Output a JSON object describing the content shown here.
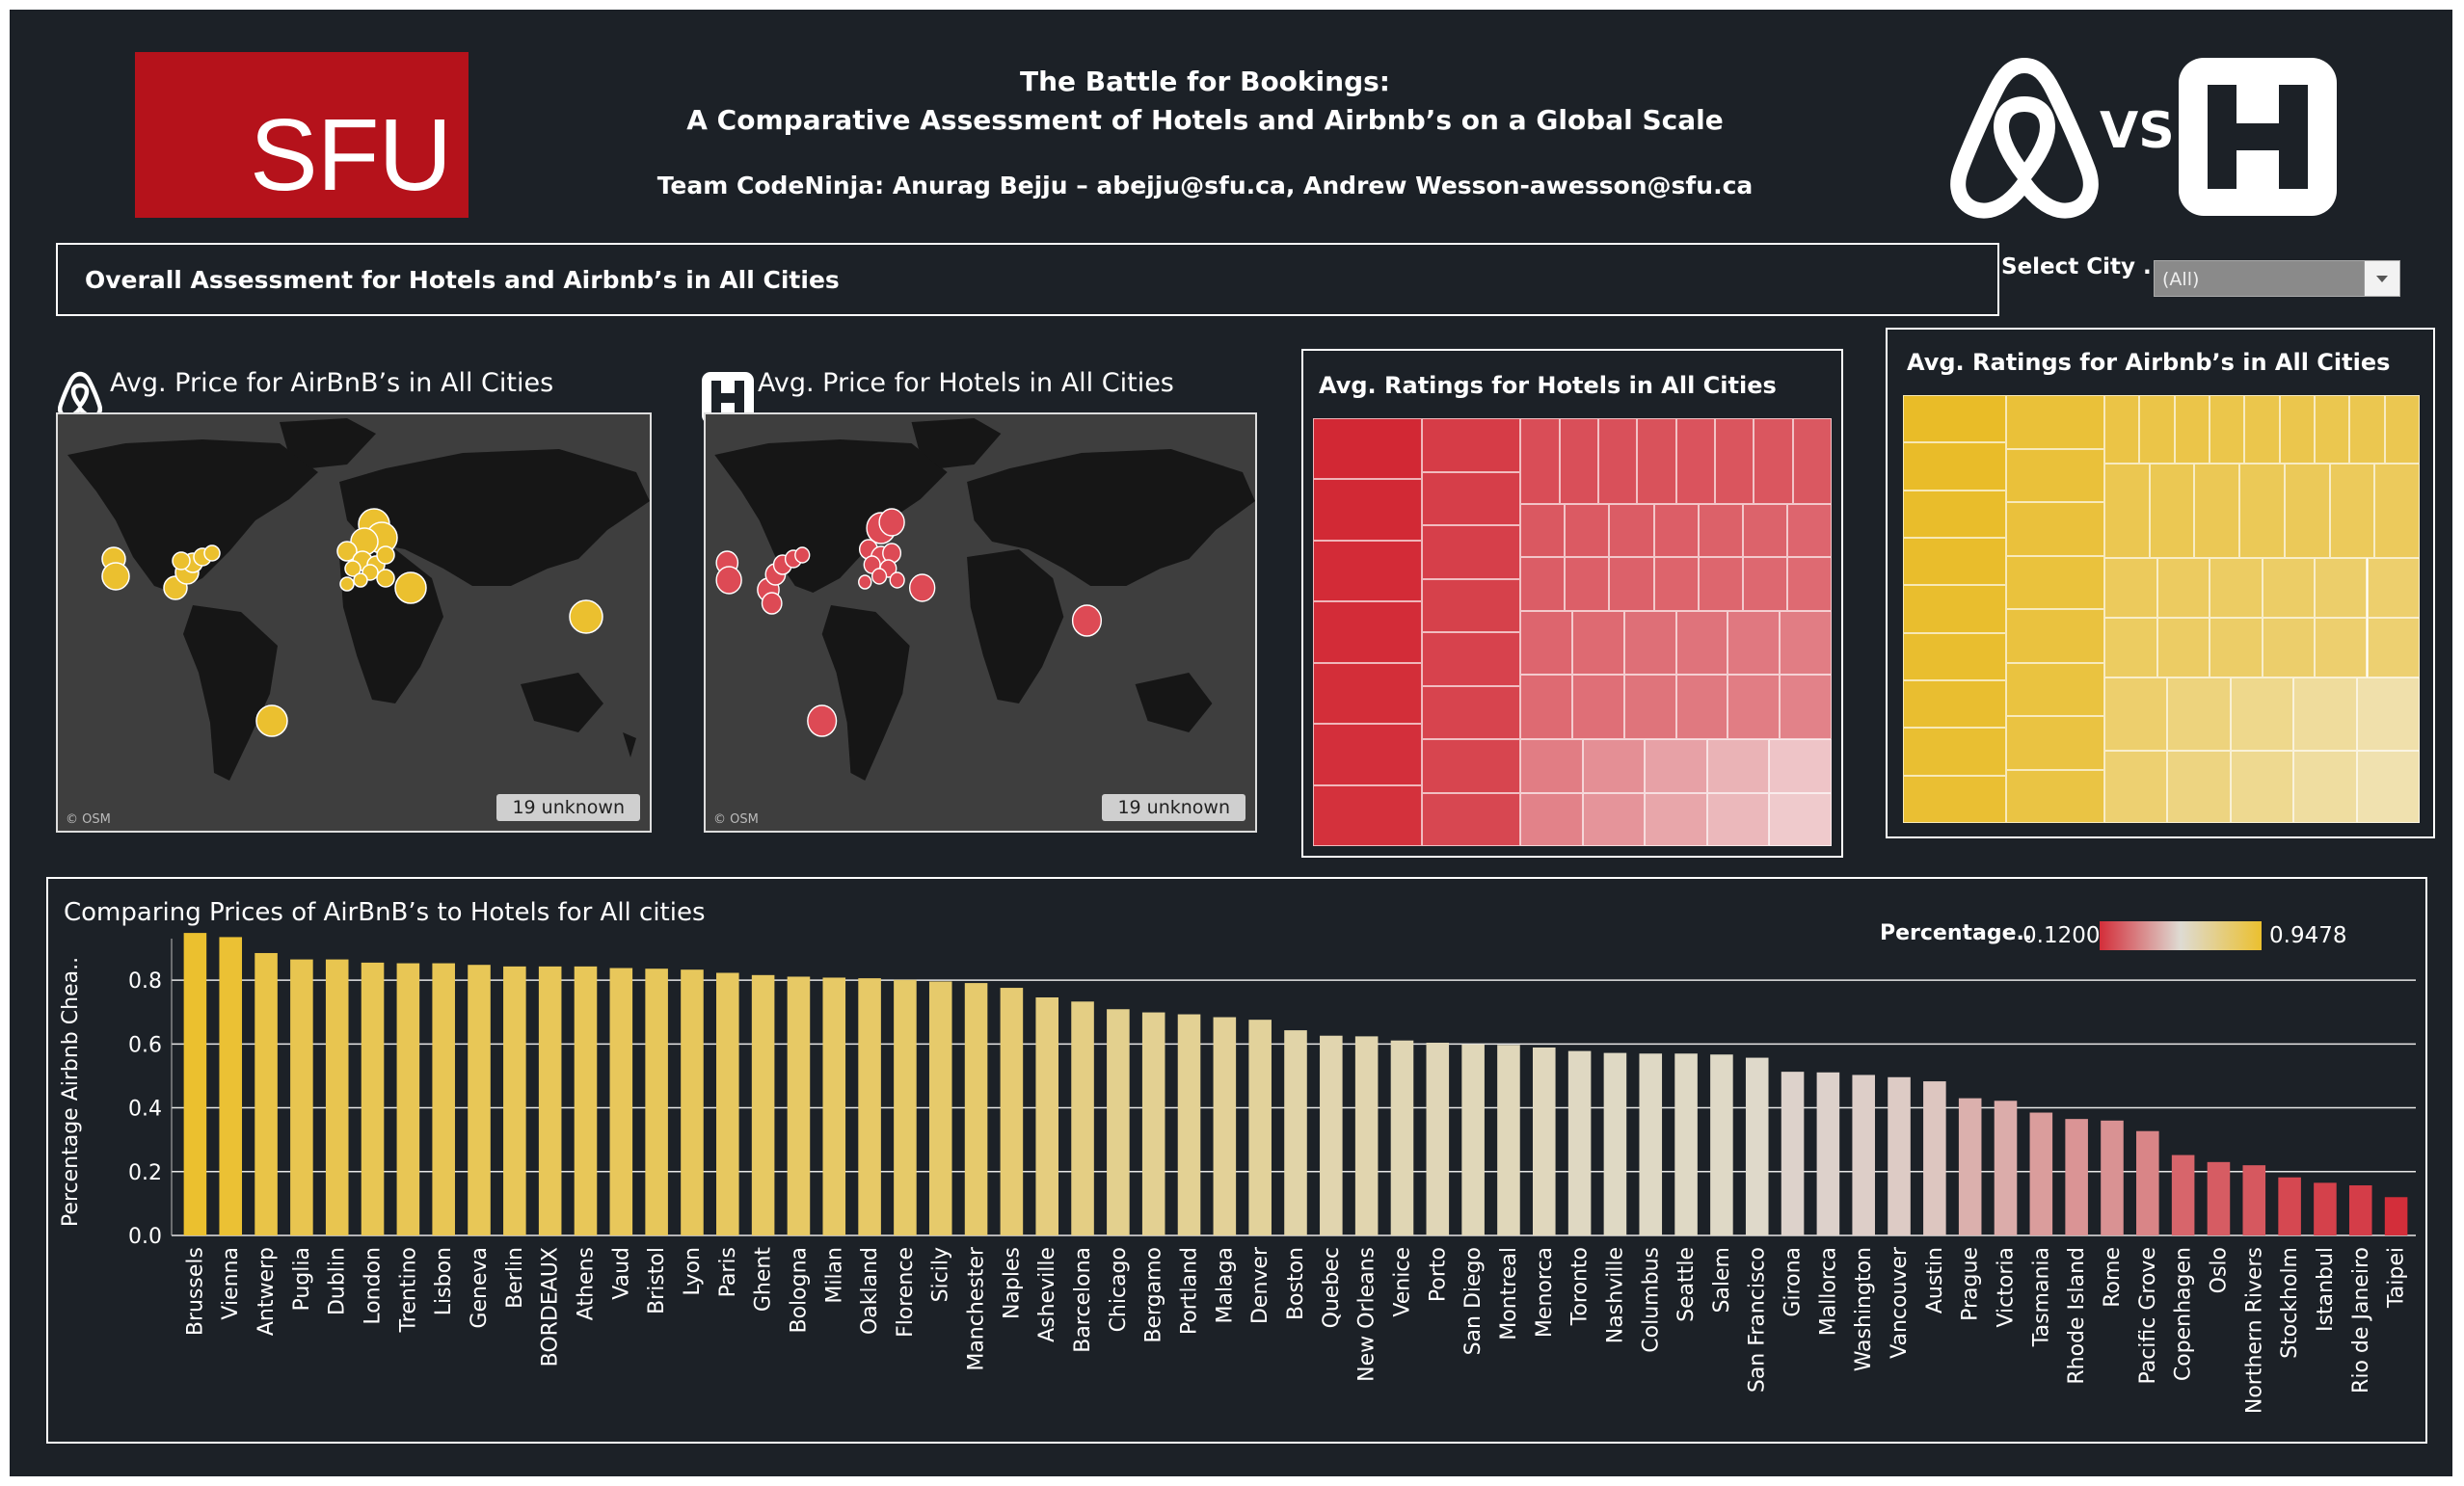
{
  "header": {
    "title_line1": "The Battle for Bookings:",
    "title_line2": "A Comparative Assessment of Hotels and Airbnb’s on a Global Scale",
    "team_prefix": "Team ",
    "team_name": "CodeNinja",
    "team_members": ": Anurag Bejju – abejju@sfu.ca, Andrew Wesson-awesson@sfu.ca",
    "sfu_logo_text": "SFU",
    "vs_text": "VS"
  },
  "assessment_title": "Overall Assessment for Hotels and Airbnb’s in All Cities",
  "city_filter": {
    "label": "Select City ..",
    "value": "(All)"
  },
  "maps": [
    {
      "title": "Avg. Price for AirBnB’s in All  Cities",
      "unknown": "19 unknown",
      "attribution": "© OSM",
      "marker_color": "#ebc02f",
      "icon": "airbnb-icon"
    },
    {
      "title": "Avg. Price for Hotels in All Cities",
      "unknown": "19 unknown",
      "attribution": "© OSM",
      "marker_color": "#dd4a55",
      "icon": "hotels-icon"
    }
  ],
  "treemaps": [
    {
      "title": "Avg. Ratings for Hotels in  All Cities",
      "palette": "red"
    },
    {
      "title": "Avg. Ratings for  Airbnb’s in All Cities",
      "palette": "yellow"
    }
  ],
  "colors": {
    "background": "#1c2127",
    "low": "#d32e3a",
    "mid": "#dedbd3",
    "high": "#ebc02f"
  },
  "chart_data": {
    "type": "bar",
    "title": "Comparing Prices of AirBnB’s  to Hotels for All cities",
    "ylabel": "Percentage Airbnb Chea..",
    "ylim": [
      0,
      0.9
    ],
    "yticks": [
      "0.0",
      "0.2",
      "0.4",
      "0.6",
      "0.8"
    ],
    "grid": true,
    "legend": {
      "title": "Percentage..",
      "min_label": "0.1200",
      "max_label": "0.9478",
      "placement": "top-right"
    },
    "color_range": [
      0.12,
      0.9478
    ],
    "categories": [
      "Brussels",
      "Vienna",
      "Antwerp",
      "Puglia",
      "Dublin",
      "London",
      "Trentino",
      "Lisbon",
      "Geneva",
      "Berlin",
      "BORDEAUX",
      "Athens",
      "Vaud",
      "Bristol",
      "Lyon",
      "Paris",
      "Ghent",
      "Bologna",
      "Milan",
      "Oakland",
      "Florence",
      "Sicily",
      "Manchester",
      "Naples",
      "Asheville",
      "Barcelona",
      "Chicago",
      "Bergamo",
      "Portland",
      "Malaga",
      "Denver",
      "Boston",
      "Quebec",
      "New Orleans",
      "Venice",
      "Porto",
      "San Diego",
      "Montreal",
      "Menorca",
      "Toronto",
      "Nashville",
      "Columbus",
      "Seattle",
      "Salem",
      "San Francisco",
      "Girona",
      "Mallorca",
      "Washington",
      "Vancouver",
      "Austin",
      "Prague",
      "Victoria",
      "Tasmania",
      "Rhode Island",
      "Rome",
      "Pacific Grove",
      "Copenhagen",
      "Oslo",
      "Northern Rivers",
      "Stockholm",
      "Istanbul",
      "Rio de Janeiro",
      "Taipei"
    ],
    "values": [
      0.948,
      0.935,
      0.885,
      0.865,
      0.865,
      0.855,
      0.853,
      0.853,
      0.848,
      0.843,
      0.843,
      0.843,
      0.838,
      0.836,
      0.833,
      0.823,
      0.816,
      0.811,
      0.808,
      0.806,
      0.801,
      0.796,
      0.791,
      0.776,
      0.746,
      0.733,
      0.709,
      0.699,
      0.693,
      0.684,
      0.676,
      0.643,
      0.626,
      0.624,
      0.611,
      0.604,
      0.599,
      0.597,
      0.589,
      0.578,
      0.572,
      0.57,
      0.57,
      0.567,
      0.557,
      0.513,
      0.511,
      0.503,
      0.496,
      0.483,
      0.43,
      0.422,
      0.385,
      0.365,
      0.36,
      0.327,
      0.252,
      0.23,
      0.22,
      0.182,
      0.165,
      0.157,
      0.12
    ]
  }
}
